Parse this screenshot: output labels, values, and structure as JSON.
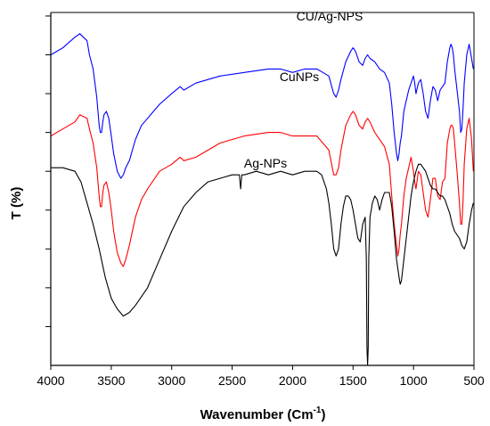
{
  "chart_data": {
    "type": "line",
    "title": "",
    "xlabel": "Wavenumber (Cm",
    "xlabel_superscript": "-1",
    "xlabel_suffix": ")",
    "ylabel": "T (%)",
    "xlim": [
      4000,
      500
    ],
    "x_reversed": true,
    "ylim": [
      0,
      100
    ],
    "grid": false,
    "legend": "none",
    "x_ticks": [
      4000,
      3500,
      3000,
      2500,
      2000,
      1500,
      1000,
      500
    ],
    "x_tick_labels": [
      "4000",
      "3500",
      "3000",
      "2500",
      "2000",
      "1500",
      "1000",
      "500"
    ],
    "y_ticks": [
      11,
      22,
      33,
      44,
      55,
      66,
      77,
      88,
      99
    ],
    "series": [
      {
        "name": "CU/Ag-NPS",
        "color": "#0000ff",
        "x": [
          4000,
          3900,
          3800,
          3760,
          3700,
          3680,
          3650,
          3620,
          3600,
          3590,
          3580,
          3570,
          3560,
          3540,
          3520,
          3500,
          3480,
          3450,
          3420,
          3400,
          3380,
          3350,
          3300,
          3250,
          3200,
          3100,
          3000,
          2930,
          2900,
          2800,
          2600,
          2400,
          2200,
          2100,
          2000,
          1900,
          1800,
          1750,
          1700,
          1660,
          1640,
          1620,
          1600,
          1560,
          1520,
          1500,
          1480,
          1450,
          1420,
          1400,
          1380,
          1360,
          1320,
          1280,
          1240,
          1200,
          1180,
          1160,
          1140,
          1130,
          1120,
          1110,
          1100,
          1080,
          1060,
          1040,
          1020,
          1000,
          990,
          980,
          960,
          940,
          920,
          900,
          880,
          860,
          840,
          820,
          800,
          780,
          760,
          740,
          720,
          700,
          690,
          680,
          670,
          660,
          640,
          620,
          610,
          600,
          590,
          580,
          560,
          540,
          520,
          505
        ],
        "y": [
          88,
          90,
          93,
          94,
          92,
          88,
          84,
          76,
          68,
          66,
          66,
          69,
          71,
          72,
          70,
          65,
          60,
          55,
          53,
          54,
          56,
          58,
          64,
          68,
          70,
          74,
          77,
          79,
          78,
          80,
          82,
          83,
          84,
          84,
          83,
          84,
          84,
          83,
          82,
          77,
          76,
          78,
          81,
          86,
          89,
          90,
          89,
          86,
          85,
          87,
          88,
          87,
          86,
          84,
          83,
          80,
          74,
          66,
          60,
          58,
          60,
          63,
          65,
          72,
          75,
          78,
          80,
          82,
          80,
          77,
          80,
          81,
          77,
          72,
          70,
          75,
          79,
          78,
          75,
          78,
          79,
          80,
          86,
          90,
          91,
          90,
          88,
          84,
          78,
          72,
          66,
          67,
          73,
          80,
          88,
          91,
          87,
          84
        ]
      },
      {
        "name": "CuNPs",
        "color": "#ff0000",
        "x": [
          4000,
          3900,
          3800,
          3760,
          3700,
          3680,
          3650,
          3620,
          3600,
          3590,
          3580,
          3570,
          3560,
          3540,
          3520,
          3500,
          3480,
          3450,
          3420,
          3400,
          3380,
          3350,
          3300,
          3250,
          3200,
          3100,
          3000,
          2930,
          2900,
          2800,
          2600,
          2400,
          2200,
          2100,
          2000,
          1900,
          1800,
          1750,
          1700,
          1660,
          1640,
          1620,
          1600,
          1560,
          1520,
          1500,
          1480,
          1450,
          1420,
          1400,
          1380,
          1360,
          1320,
          1280,
          1240,
          1200,
          1180,
          1160,
          1140,
          1130,
          1120,
          1110,
          1100,
          1080,
          1060,
          1040,
          1020,
          1000,
          990,
          980,
          960,
          940,
          920,
          900,
          880,
          860,
          840,
          820,
          800,
          780,
          760,
          740,
          720,
          700,
          690,
          680,
          670,
          660,
          640,
          620,
          610,
          600,
          590,
          580,
          560,
          540,
          520,
          505
        ],
        "y": [
          65,
          67,
          69,
          71,
          70,
          67,
          63,
          56,
          48,
          45,
          45,
          49,
          51,
          52,
          49,
          44,
          38,
          32,
          29,
          28,
          30,
          34,
          42,
          47,
          50,
          55,
          57,
          59,
          58,
          59,
          63,
          65,
          66,
          66,
          65,
          65,
          65,
          63,
          61,
          54,
          54,
          56,
          61,
          68,
          71,
          72,
          71,
          68,
          67,
          69,
          70,
          69,
          66,
          64,
          62,
          57,
          48,
          40,
          34,
          31,
          33,
          37,
          40,
          48,
          53,
          56,
          59,
          55,
          52,
          50,
          55,
          54,
          49,
          44,
          42,
          47,
          53,
          53,
          48,
          47,
          52,
          53,
          63,
          67,
          68,
          68,
          67,
          63,
          55,
          46,
          40,
          40,
          47,
          57,
          67,
          70,
          64,
          55
        ]
      },
      {
        "name": "Ag-NPs",
        "color": "#000000",
        "x": [
          4000,
          3900,
          3800,
          3750,
          3700,
          3650,
          3600,
          3550,
          3500,
          3450,
          3400,
          3350,
          3300,
          3200,
          3100,
          3000,
          2900,
          2800,
          2700,
          2600,
          2500,
          2440,
          2430,
          2420,
          2400,
          2300,
          2200,
          2100,
          2000,
          1900,
          1800,
          1760,
          1720,
          1700,
          1680,
          1660,
          1640,
          1620,
          1600,
          1580,
          1560,
          1540,
          1520,
          1500,
          1480,
          1460,
          1440,
          1420,
          1400,
          1390,
          1385,
          1380,
          1375,
          1370,
          1360,
          1340,
          1320,
          1300,
          1280,
          1260,
          1240,
          1200,
          1180,
          1160,
          1140,
          1120,
          1110,
          1100,
          1080,
          1060,
          1040,
          1020,
          1000,
          980,
          960,
          940,
          920,
          900,
          880,
          860,
          840,
          820,
          800,
          780,
          760,
          740,
          720,
          700,
          680,
          660,
          640,
          620,
          600,
          580,
          560,
          540,
          520,
          505
        ],
        "y": [
          56,
          56,
          55,
          52,
          46,
          40,
          33,
          25,
          19,
          16,
          14,
          15,
          17,
          22,
          30,
          38,
          45,
          49,
          52,
          53,
          54,
          54,
          50,
          54,
          54,
          55,
          54,
          55,
          54,
          55,
          55,
          54,
          50,
          46,
          40,
          33,
          31,
          33,
          40,
          45,
          48,
          48,
          47,
          44,
          40,
          36,
          35,
          40,
          42,
          30,
          5,
          0,
          5,
          30,
          42,
          46,
          48,
          47,
          44,
          47,
          49,
          49,
          45,
          38,
          30,
          25,
          23,
          24,
          30,
          36,
          42,
          48,
          52,
          55,
          57,
          57,
          56,
          55,
          53,
          51,
          50,
          50,
          49,
          48,
          48,
          47,
          45,
          43,
          40,
          38,
          37,
          36,
          34,
          33,
          35,
          40,
          44,
          46
        ]
      }
    ],
    "annotations": [
      {
        "text": "CU/Ag-NPS",
        "series": 0
      },
      {
        "text": "CuNPs",
        "series": 1
      },
      {
        "text": "Ag-NPs",
        "series": 2
      }
    ]
  }
}
